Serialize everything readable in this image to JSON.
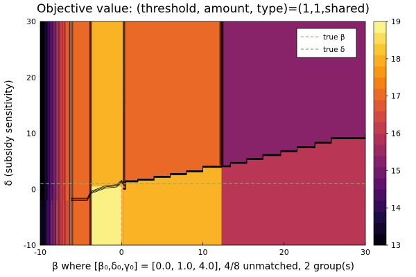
{
  "chart_data": {
    "type": "heatmap",
    "title": "Objective value: (threshold, amount, type)=(1,1,shared)",
    "xlabel": "β where [β₀,δ₀,γ₀] = [0.0, 1.0, 4.0], 4/8 unmatched, 2 group(s)",
    "ylabel": "δ (subsidy sensitivity)",
    "xlim": [
      -10,
      30
    ],
    "ylim": [
      -10,
      30
    ],
    "x_ticks": [
      -10,
      0,
      10,
      20,
      30
    ],
    "y_ticks": [
      -10,
      0,
      10,
      20,
      30
    ],
    "x_tick_labels": [
      "-10",
      "0",
      "10",
      "20",
      "30"
    ],
    "y_tick_labels": [
      "-10",
      "0",
      "10",
      "20",
      "30"
    ],
    "colorbar": {
      "min": 13,
      "max": 19,
      "ticks": [
        13,
        14,
        15,
        16,
        17,
        18,
        19
      ],
      "tick_labels": [
        "13",
        "14",
        "15",
        "16",
        "17",
        "18",
        "19"
      ],
      "levels": 20,
      "colormap": "inferno"
    },
    "legend": {
      "position": "top-right",
      "entries": [
        {
          "label": "true β",
          "color": "#e8968f",
          "style": "dashed"
        },
        {
          "label": "true δ",
          "color": "#6dbd69",
          "style": "dashed"
        }
      ]
    },
    "reference_lines": {
      "true_beta_x": 0.0,
      "true_delta_y": 1.0
    },
    "regions": [
      {
        "name": "far-left-dark",
        "value": 13.0,
        "x_range": [
          -10,
          -8.4
        ],
        "note": "banded transitions 13 to 16"
      },
      {
        "name": "left-orange",
        "value": 17.0,
        "x_range": [
          -6.2,
          -3.8
        ]
      },
      {
        "name": "center-bright",
        "value": 18.5,
        "x_range": [
          -3.8,
          0.0
        ],
        "y_range": [
          -10,
          1.0
        ]
      },
      {
        "name": "center-gold",
        "value": 18.0,
        "x_range": [
          -2.8,
          0.3
        ],
        "y_range": [
          1.0,
          30
        ]
      },
      {
        "name": "mid-gold",
        "value": 18.0,
        "x_range": [
          0.3,
          12.3
        ],
        "y_range": [
          -10,
          "boundary"
        ]
      },
      {
        "name": "mid-orange",
        "value": 17.0,
        "x_range": [
          0.3,
          12.3
        ],
        "y_range": [
          "boundary",
          30
        ]
      },
      {
        "name": "right-purple",
        "value": 15.3,
        "x_range": [
          12.3,
          30
        ],
        "y_range": [
          "boundary",
          30
        ]
      },
      {
        "name": "right-red",
        "value": 16.0,
        "x_range": [
          12.3,
          30
        ],
        "y_range": [
          -10,
          "boundary"
        ]
      }
    ],
    "boundary_staircase": [
      [
        0.2,
        0.0
      ],
      [
        0.5,
        1.3
      ],
      [
        2.0,
        1.6
      ],
      [
        4.0,
        2.1
      ],
      [
        6.0,
        2.6
      ],
      [
        8.0,
        3.1
      ],
      [
        10.0,
        3.9
      ],
      [
        12.3,
        4.5
      ],
      [
        12.3,
        4.0
      ],
      [
        13.4,
        4.6
      ],
      [
        15.4,
        5.3
      ],
      [
        17.4,
        6.0
      ],
      [
        19.6,
        6.7
      ],
      [
        21.6,
        7.4
      ],
      [
        23.8,
        8.2
      ],
      [
        25.8,
        9.0
      ],
      [
        30.0,
        9.6
      ]
    ]
  }
}
